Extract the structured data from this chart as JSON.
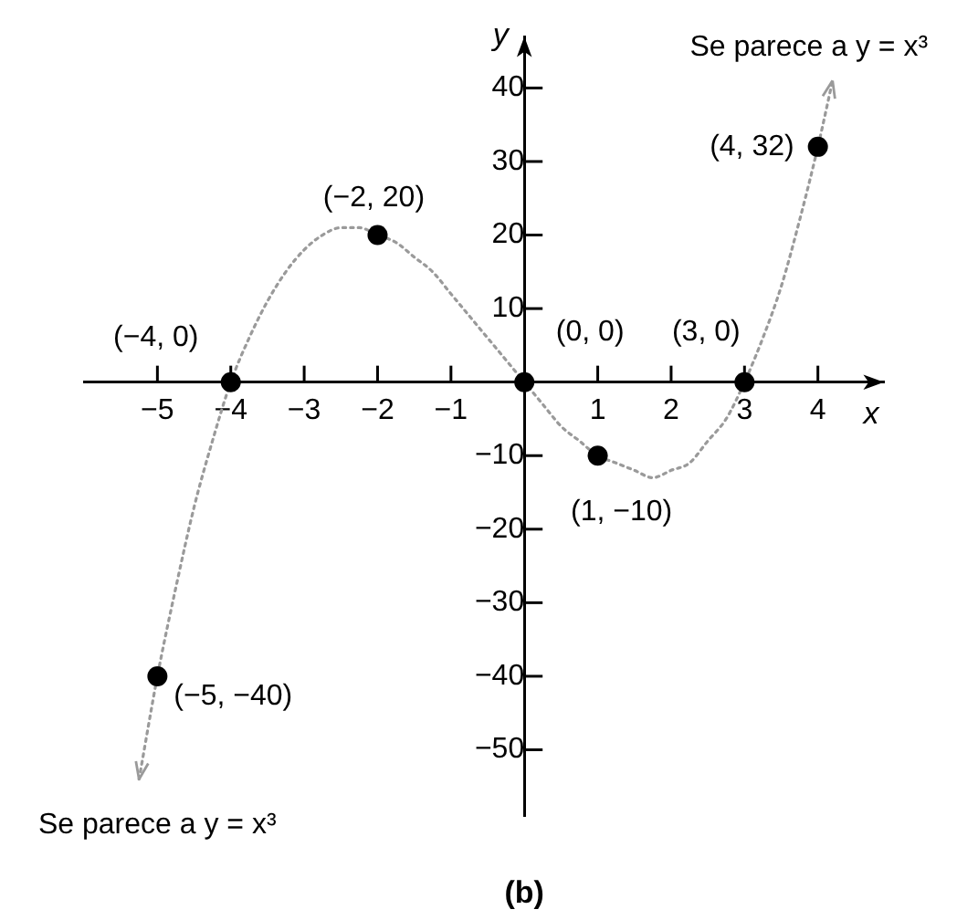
{
  "chart_data": {
    "type": "line",
    "xlabel": "x",
    "ylabel": "y",
    "xlim": [
      -6,
      4.9
    ],
    "ylim": [
      -59,
      47
    ],
    "xticks": [
      {
        "value": -5,
        "label": "−5"
      },
      {
        "value": -4,
        "label": "−4"
      },
      {
        "value": -3,
        "label": "−3"
      },
      {
        "value": -2,
        "label": "−2"
      },
      {
        "value": -1,
        "label": "−1"
      },
      1,
      2,
      3,
      4
    ],
    "yticks": [
      40,
      30,
      20,
      10,
      {
        "value": -10,
        "label": "−10"
      },
      {
        "value": -20,
        "label": "−20"
      },
      {
        "value": -30,
        "label": "−30"
      },
      {
        "value": -40,
        "label": "−40"
      },
      {
        "value": -50,
        "label": "−50"
      }
    ],
    "series": [
      {
        "type": "line",
        "color": "#9a9a9a",
        "line_style": "dotted",
        "x": [
          -5.25,
          -5,
          -4.75,
          -4.5,
          -4.25,
          -4,
          -3.75,
          -3.5,
          -3.25,
          -3,
          -2.75,
          -2.5,
          -2.25,
          -2,
          -1.75,
          -1.5,
          -1.25,
          -1,
          -0.75,
          -0.5,
          -0.25,
          0,
          0.25,
          0.5,
          0.75,
          1,
          1.25,
          1.5,
          1.75,
          2,
          2.25,
          2.5,
          2.75,
          3,
          3.25,
          3.5,
          3.75,
          4,
          4.2
        ],
        "values": [
          -54,
          -40,
          -28,
          -17,
          -8,
          0,
          6,
          11,
          15,
          18,
          20,
          21,
          21,
          20,
          19,
          17,
          15,
          12,
          9,
          6,
          3,
          0,
          -3,
          -6,
          -8,
          -10,
          -11,
          -12,
          -13,
          -12,
          -11,
          -8,
          -5,
          0,
          6,
          13,
          22,
          32,
          41
        ]
      },
      {
        "type": "scatter",
        "color": "#000000",
        "marker": "circle",
        "x": [
          -5,
          -4,
          -2,
          0,
          1,
          3,
          4
        ],
        "values": [
          -40,
          0,
          20,
          0,
          -10,
          0,
          32
        ]
      }
    ],
    "annotations": [
      {
        "text": "Se parece a y = x³",
        "x": 4.2,
        "y": 41
      },
      {
        "text": "(−2, 20)",
        "x": -2,
        "y": 20
      },
      {
        "text": "(4, 32)",
        "x": 4,
        "y": 32
      },
      {
        "text": "(−4, 0)",
        "x": -4,
        "y": 0
      },
      {
        "text": "(0, 0)",
        "x": 0,
        "y": 0
      },
      {
        "text": "(3, 0)",
        "x": 3,
        "y": 0
      },
      {
        "text": "(1, −10)",
        "x": 1,
        "y": -10
      },
      {
        "text": "(−5, −40)",
        "x": -5,
        "y": -40
      },
      {
        "text": "Se parece a y = x³",
        "x": -5.25,
        "y": -54
      },
      "(b)"
    ],
    "grid": false,
    "legend": false
  }
}
